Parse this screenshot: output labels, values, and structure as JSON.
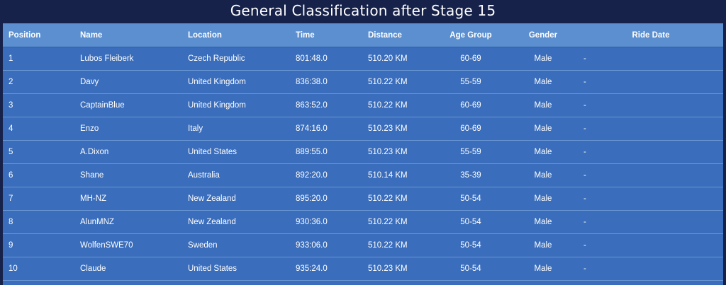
{
  "title": "General Classification after Stage 15",
  "columns": {
    "position": "Position",
    "name": "Name",
    "location": "Location",
    "time": "Time",
    "distance": "Distance",
    "age_group": "Age Group",
    "gender": "Gender",
    "ride_date": "Ride Date"
  },
  "rows": [
    {
      "position": "1",
      "name": "Lubos Fleiberk",
      "location": "Czech Republic",
      "time": "801:48.0",
      "distance": "510.20 KM",
      "age_group": "60-69",
      "gender": "Male",
      "ride_date": "-"
    },
    {
      "position": "2",
      "name": "Davy",
      "location": "United Kingdom",
      "time": "836:38.0",
      "distance": "510.22 KM",
      "age_group": "55-59",
      "gender": "Male",
      "ride_date": "-"
    },
    {
      "position": "3",
      "name": "CaptainBlue",
      "location": "United Kingdom",
      "time": "863:52.0",
      "distance": "510.22 KM",
      "age_group": "60-69",
      "gender": "Male",
      "ride_date": "-"
    },
    {
      "position": "4",
      "name": "Enzo",
      "location": "Italy",
      "time": "874:16.0",
      "distance": "510.23 KM",
      "age_group": "60-69",
      "gender": "Male",
      "ride_date": "-"
    },
    {
      "position": "5",
      "name": "A.Dixon",
      "location": "United States",
      "time": "889:55.0",
      "distance": "510.23 KM",
      "age_group": "55-59",
      "gender": "Male",
      "ride_date": "-"
    },
    {
      "position": "6",
      "name": "Shane",
      "location": "Australia",
      "time": "892:20.0",
      "distance": "510.14 KM",
      "age_group": "35-39",
      "gender": "Male",
      "ride_date": "-"
    },
    {
      "position": "7",
      "name": "MH-NZ",
      "location": "New Zealand",
      "time": "895:20.0",
      "distance": "510.22 KM",
      "age_group": "50-54",
      "gender": "Male",
      "ride_date": "-"
    },
    {
      "position": "8",
      "name": "AlunMNZ",
      "location": "New Zealand",
      "time": "930:36.0",
      "distance": "510.22 KM",
      "age_group": "50-54",
      "gender": "Male",
      "ride_date": "-"
    },
    {
      "position": "9",
      "name": "WolfenSWE70",
      "location": "Sweden",
      "time": "933:06.0",
      "distance": "510.22 KM",
      "age_group": "50-54",
      "gender": "Male",
      "ride_date": "-"
    },
    {
      "position": "10",
      "name": "Claude",
      "location": "United States",
      "time": "935:24.0",
      "distance": "510.23 KM",
      "age_group": "50-54",
      "gender": "Male",
      "ride_date": "-"
    }
  ]
}
